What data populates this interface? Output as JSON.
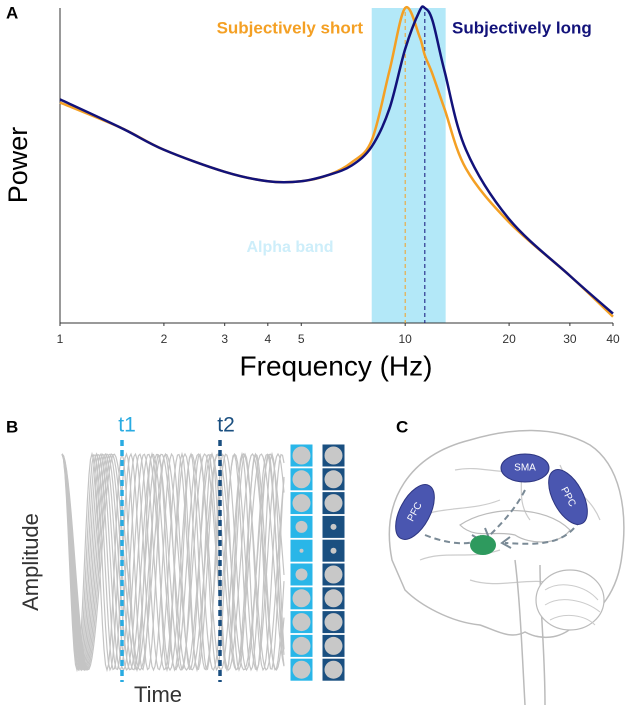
{
  "chart_data": {
    "type": "line",
    "panel": "A",
    "xscale": "log",
    "x_label": "Frequency (Hz)",
    "y_label": "Power",
    "x": [
      1,
      1.5,
      2,
      3,
      4,
      5,
      6,
      7,
      8,
      9,
      10,
      11,
      11.4,
      12,
      13,
      15,
      20,
      30,
      40
    ],
    "series": [
      {
        "name": "Subjectively short",
        "color": "#f4a024",
        "peak": 10,
        "values": [
          0.7,
          0.62,
          0.55,
          0.48,
          0.45,
          0.45,
          0.47,
          0.51,
          0.58,
          0.8,
          1.0,
          0.91,
          0.85,
          0.79,
          0.68,
          0.49,
          0.32,
          0.15,
          0.02
        ]
      },
      {
        "name": "Subjectively long",
        "color": "#12127a",
        "peak": 11.4,
        "values": [
          0.71,
          0.62,
          0.55,
          0.48,
          0.45,
          0.45,
          0.47,
          0.5,
          0.56,
          0.68,
          0.87,
          0.99,
          1.0,
          0.96,
          0.8,
          0.55,
          0.33,
          0.15,
          0.03
        ]
      }
    ],
    "band": {
      "label": "Alpha band",
      "range": [
        8,
        13.1
      ],
      "color": "#b3e8f8"
    },
    "xlim": [
      1,
      40
    ],
    "xticks": [
      1,
      2,
      3,
      4,
      5,
      10,
      20,
      30,
      40
    ],
    "ylim": [
      0,
      1
    ]
  },
  "panel_b": {
    "panel": "B",
    "y_label": "Amplitude",
    "x_label": "Time",
    "t1": "t1",
    "t2": "t2"
  },
  "panel_c": {
    "panel": "C",
    "regions": [
      "PFC",
      "SMA",
      "PPC"
    ]
  }
}
